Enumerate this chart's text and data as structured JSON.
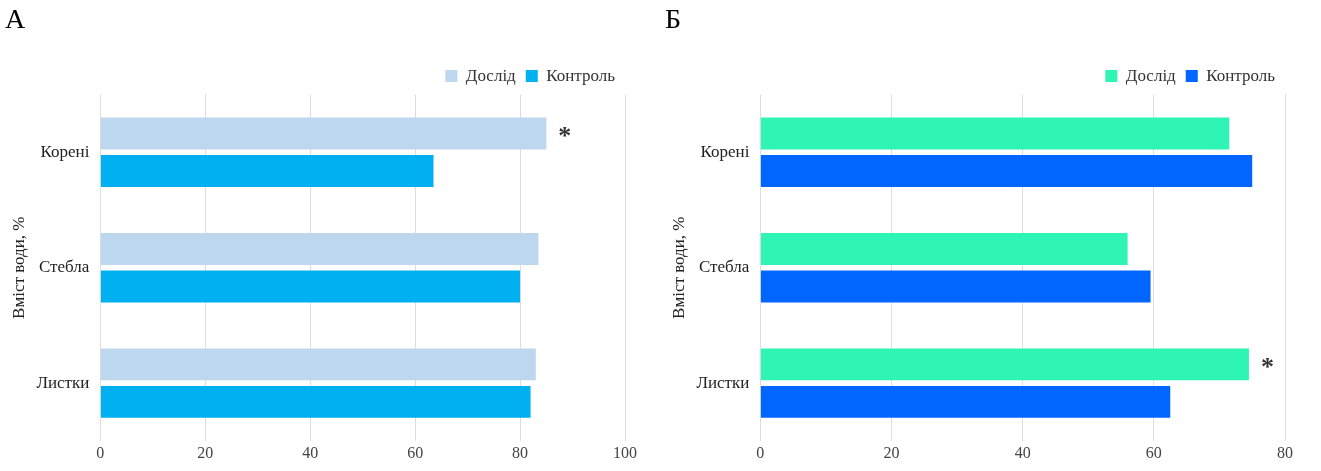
{
  "chart_data": [
    {
      "type": "bar",
      "orientation": "horizontal",
      "title": "А",
      "ylabel": "Вміст води, %",
      "categories": [
        "Корені",
        "Стебла",
        "Листки"
      ],
      "series": [
        {
          "name": "Дослід",
          "color": "#bdd7ee",
          "values": [
            85,
            83.5,
            83
          ]
        },
        {
          "name": "Контроль",
          "color": "#00b0f0",
          "values": [
            63.5,
            80,
            82
          ]
        }
      ],
      "xlim": [
        0,
        100
      ],
      "xticks": [
        0,
        20,
        40,
        60,
        80,
        100
      ],
      "grid": "x",
      "legend": "top right",
      "annotations": [
        {
          "text": "*",
          "x": 85,
          "y": "Корені"
        }
      ]
    },
    {
      "type": "bar",
      "orientation": "horizontal",
      "title": "Б",
      "ylabel": "Вміст води, %",
      "categories": [
        "Корені",
        "Стебла",
        "Листки"
      ],
      "series": [
        {
          "name": "Дослід",
          "color": "#2ef5b5",
          "values": [
            71.5,
            56,
            74.5
          ]
        },
        {
          "name": "Контроль",
          "color": "#0066ff",
          "values": [
            75,
            59.5,
            62.5
          ]
        }
      ],
      "xlim": [
        0,
        80
      ],
      "xticks": [
        0,
        20,
        40,
        60,
        80
      ],
      "grid": "x",
      "legend": "top right",
      "annotations": [
        {
          "text": "*",
          "x": 74.5,
          "y": "Листки"
        }
      ]
    }
  ]
}
